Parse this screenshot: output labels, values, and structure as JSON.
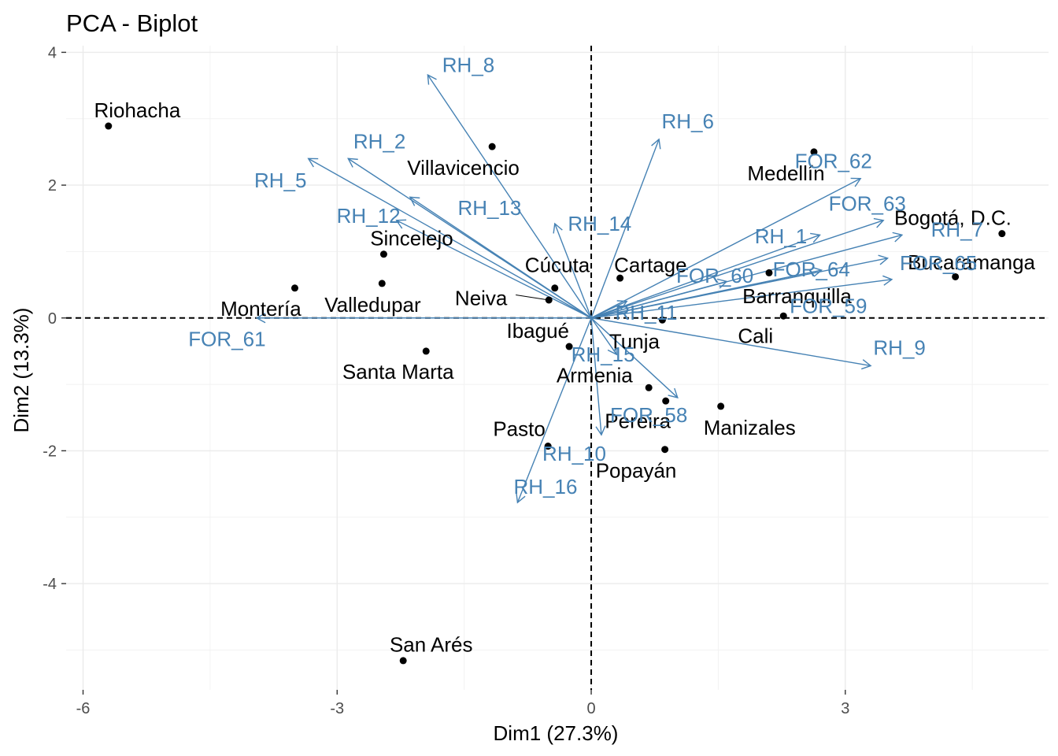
{
  "chart_data": {
    "type": "scatter",
    "title": "PCA - Biplot",
    "xlabel": "Dim1 (27.3%)",
    "ylabel": "Dim2 (13.3%)",
    "xlim": [
      -6.2,
      5.4
    ],
    "ylim": [
      -5.6,
      4.1
    ],
    "x_ticks": [
      -6,
      -3,
      0,
      3
    ],
    "y_ticks": [
      -4,
      -2,
      0,
      2,
      4
    ],
    "x_tick_labels": [
      "-6",
      "-3",
      "0",
      "3"
    ],
    "y_tick_labels": [
      "-4",
      "-2",
      "0",
      "2",
      "4"
    ],
    "grid": true,
    "variable_color": "#4682B4",
    "individual_color": "#000000",
    "individuals": [
      {
        "name": "Riohacha",
        "x": -5.7,
        "y": 2.89,
        "lx": -5.36,
        "ly": 3.13
      },
      {
        "name": "Villavicencio",
        "x": -1.17,
        "y": 2.58,
        "lx": -1.51,
        "ly": 2.26
      },
      {
        "name": "Medellín",
        "x": 2.63,
        "y": 2.5,
        "lx": 2.3,
        "ly": 2.18
      },
      {
        "name": "Bogotá, D.C.",
        "x": 4.85,
        "y": 1.27,
        "lx": 4.27,
        "ly": 1.51
      },
      {
        "name": "Sincelejo",
        "x": -2.45,
        "y": 0.96,
        "lx": -2.12,
        "ly": 1.2
      },
      {
        "name": "Bucaramanga",
        "x": 4.3,
        "y": 0.62,
        "lx": 4.49,
        "ly": 0.84
      },
      {
        "name": "Cúcuta",
        "x": -0.43,
        "y": 0.45,
        "lx": -0.4,
        "ly": 0.8
      },
      {
        "name": "Cartage",
        "x": 0.34,
        "y": 0.6,
        "lx": 0.7,
        "ly": 0.8
      },
      {
        "name": "Neiva",
        "x": -0.5,
        "y": 0.27,
        "lx": -1.3,
        "ly": 0.3
      },
      {
        "name": "Valledupar",
        "x": -2.47,
        "y": 0.52,
        "lx": -2.58,
        "ly": 0.2
      },
      {
        "name": "Montería",
        "x": -3.5,
        "y": 0.45,
        "lx": -3.9,
        "ly": 0.14
      },
      {
        "name": "Barranquilla",
        "x": 2.1,
        "y": 0.68,
        "lx": 2.43,
        "ly": 0.33
      },
      {
        "name": "Cali",
        "x": 2.27,
        "y": 0.03,
        "lx": 1.94,
        "ly": -0.27
      },
      {
        "name": "Tunja",
        "x": 0.84,
        "y": -0.03,
        "lx": 0.51,
        "ly": -0.35
      },
      {
        "name": "Ibagué",
        "x": -0.26,
        "y": -0.43,
        "lx": -0.63,
        "ly": -0.19
      },
      {
        "name": "Santa Marta",
        "x": -1.95,
        "y": -0.5,
        "lx": -2.28,
        "ly": -0.81
      },
      {
        "name": "Armenia",
        "x": 0.68,
        "y": -1.05,
        "lx": 0.04,
        "ly": -0.86
      },
      {
        "name": "Manizales",
        "x": 1.53,
        "y": -1.33,
        "lx": 1.87,
        "ly": -1.65
      },
      {
        "name": "Pereira",
        "x": 0.88,
        "y": -1.25,
        "lx": 0.55,
        "ly": -1.55
      },
      {
        "name": "Pasto",
        "x": -0.51,
        "y": -1.93,
        "lx": -0.85,
        "ly": -1.67
      },
      {
        "name": "Popayán",
        "x": 0.87,
        "y": -1.98,
        "lx": 0.53,
        "ly": -2.3
      },
      {
        "name": "San Arés",
        "x": -2.22,
        "y": -5.16,
        "lx": -1.89,
        "ly": -4.92
      }
    ],
    "variables": [
      {
        "name": "RH_8",
        "x": -1.93,
        "y": 3.66,
        "lx": -1.45,
        "ly": 3.81
      },
      {
        "name": "RH_6",
        "x": 0.8,
        "y": 2.69,
        "lx": 1.14,
        "ly": 2.96
      },
      {
        "name": "RH_2",
        "x": -2.87,
        "y": 2.4,
        "lx": -2.5,
        "ly": 2.66
      },
      {
        "name": "RH_5",
        "x": -3.34,
        "y": 2.4,
        "lx": -3.67,
        "ly": 2.07
      },
      {
        "name": "FOR_62",
        "x": 3.18,
        "y": 2.1,
        "lx": 2.86,
        "ly": 2.36
      },
      {
        "name": "RH_13",
        "x": -2.14,
        "y": 1.82,
        "lx": -1.2,
        "ly": 1.66
      },
      {
        "name": "RH_12",
        "x": -2.3,
        "y": 1.47,
        "lx": -2.63,
        "ly": 1.54
      },
      {
        "name": "FOR_63",
        "x": 3.45,
        "y": 1.47,
        "lx": 3.26,
        "ly": 1.72
      },
      {
        "name": "RH_14",
        "x": -0.43,
        "y": 1.42,
        "lx": 0.1,
        "ly": 1.42
      },
      {
        "name": "RH_7",
        "x": 3.67,
        "y": 1.25,
        "lx": 4.32,
        "ly": 1.33
      },
      {
        "name": "RH_1",
        "x": 2.7,
        "y": 1.25,
        "lx": 2.24,
        "ly": 1.23
      },
      {
        "name": "FOR_65",
        "x": 3.5,
        "y": 0.9,
        "lx": 4.1,
        "ly": 0.83
      },
      {
        "name": "FOR_64",
        "x": 2.72,
        "y": 0.72,
        "lx": 2.6,
        "ly": 0.73
      },
      {
        "name": "FOR_60",
        "x": 1.6,
        "y": 0.55,
        "lx": 1.46,
        "ly": 0.64
      },
      {
        "name": "FOR_59",
        "x": 3.55,
        "y": 0.58,
        "lx": 2.8,
        "ly": 0.18
      },
      {
        "name": "RH_11",
        "x": 0.42,
        "y": 0.25,
        "lx": 0.65,
        "ly": 0.08
      },
      {
        "name": "FOR_61",
        "x": -3.95,
        "y": 0.0,
        "lx": -4.3,
        "ly": -0.32
      },
      {
        "name": "RH_9",
        "x": 3.3,
        "y": -0.72,
        "lx": 3.64,
        "ly": -0.45
      },
      {
        "name": "RH_15",
        "x": 0.3,
        "y": -0.55,
        "lx": 0.14,
        "ly": -0.55
      },
      {
        "name": "FOR_58",
        "x": 1.02,
        "y": -1.2,
        "lx": 0.68,
        "ly": -1.46
      },
      {
        "name": "RH_10",
        "x": 0.12,
        "y": -1.76,
        "lx": -0.2,
        "ly": -2.04
      },
      {
        "name": "RH_16",
        "x": -0.87,
        "y": -2.78,
        "lx": -0.54,
        "ly": -2.54
      }
    ]
  }
}
